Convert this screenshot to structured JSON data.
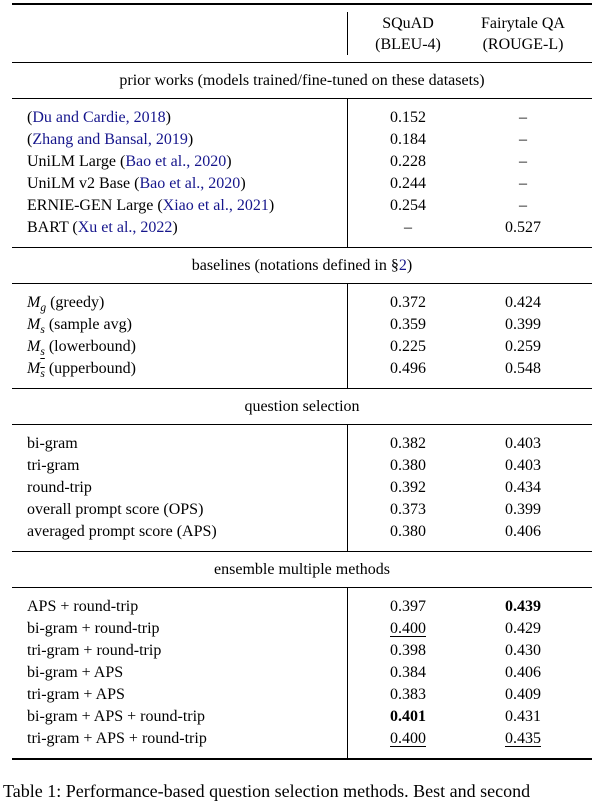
{
  "colors": {
    "text": "#000000",
    "citation_link": "#16168c",
    "rule": "#000000",
    "background": "#ffffff"
  },
  "header": {
    "columns": [
      {
        "line1": "SQuAD",
        "line2": "(BLEU-4)"
      },
      {
        "line1": "Fairytale QA",
        "line2": "(ROUGE-L)"
      }
    ]
  },
  "sections": [
    {
      "title": [
        {
          "t": "prior works (models trained/fine-tuned on these datasets)"
        }
      ],
      "rows": [
        {
          "label": [
            {
              "t": "("
            },
            {
              "t": "Du and Cardie, 2018",
              "s": "cite"
            },
            {
              "t": ")"
            }
          ],
          "v1": {
            "t": "0.152"
          },
          "v2": {
            "t": "–"
          }
        },
        {
          "label": [
            {
              "t": "("
            },
            {
              "t": "Zhang and Bansal, 2019",
              "s": "cite"
            },
            {
              "t": ")"
            }
          ],
          "v1": {
            "t": "0.184"
          },
          "v2": {
            "t": "–"
          }
        },
        {
          "label": [
            {
              "t": "UniLM Large ("
            },
            {
              "t": "Bao et al., 2020",
              "s": "cite"
            },
            {
              "t": ")"
            }
          ],
          "v1": {
            "t": "0.228"
          },
          "v2": {
            "t": "–"
          }
        },
        {
          "label": [
            {
              "t": "UniLM v2 Base ("
            },
            {
              "t": "Bao et al., 2020",
              "s": "cite"
            },
            {
              "t": ")"
            }
          ],
          "v1": {
            "t": "0.244"
          },
          "v2": {
            "t": "–"
          }
        },
        {
          "label": [
            {
              "t": "ERNIE-GEN Large ("
            },
            {
              "t": "Xiao et al., 2021",
              "s": "cite"
            },
            {
              "t": ")"
            }
          ],
          "v1": {
            "t": "0.254"
          },
          "v2": {
            "t": "–"
          }
        },
        {
          "label": [
            {
              "t": "BART ("
            },
            {
              "t": "Xu et al., 2022",
              "s": "cite"
            },
            {
              "t": ")"
            }
          ],
          "v1": {
            "t": "–"
          },
          "v2": {
            "t": "0.527"
          }
        }
      ]
    },
    {
      "title": [
        {
          "t": "baselines (notations defined in §"
        },
        {
          "t": "2",
          "s": "cite"
        },
        {
          "t": ")"
        }
      ],
      "rows": [
        {
          "label": [
            {
              "t": "M",
              "s": "math"
            },
            {
              "t": "g",
              "s": "sub"
            },
            {
              "t": " (greedy)"
            }
          ],
          "v1": {
            "t": "0.372"
          },
          "v2": {
            "t": "0.424"
          }
        },
        {
          "label": [
            {
              "t": "M",
              "s": "math"
            },
            {
              "t": "s",
              "s": "sub"
            },
            {
              "t": " (sample avg)"
            }
          ],
          "v1": {
            "t": "0.359"
          },
          "v2": {
            "t": "0.399"
          }
        },
        {
          "label": [
            {
              "t": "M",
              "s": "math"
            },
            {
              "t": "s",
              "s": "sub-under"
            },
            {
              "t": " (lowerbound)"
            }
          ],
          "v1": {
            "t": "0.225"
          },
          "v2": {
            "t": "0.259"
          }
        },
        {
          "label": [
            {
              "t": "M",
              "s": "math"
            },
            {
              "t": "s",
              "s": "sub-over"
            },
            {
              "t": " (upperbound)"
            }
          ],
          "v1": {
            "t": "0.496"
          },
          "v2": {
            "t": "0.548"
          }
        }
      ]
    },
    {
      "title": [
        {
          "t": "question selection"
        }
      ],
      "rows": [
        {
          "label": [
            {
              "t": "bi-gram"
            }
          ],
          "v1": {
            "t": "0.382"
          },
          "v2": {
            "t": "0.403"
          }
        },
        {
          "label": [
            {
              "t": "tri-gram"
            }
          ],
          "v1": {
            "t": "0.380"
          },
          "v2": {
            "t": "0.403"
          }
        },
        {
          "label": [
            {
              "t": "round-trip"
            }
          ],
          "v1": {
            "t": "0.392"
          },
          "v2": {
            "t": "0.434"
          }
        },
        {
          "label": [
            {
              "t": "overall prompt score (OPS)"
            }
          ],
          "v1": {
            "t": "0.373"
          },
          "v2": {
            "t": "0.399"
          }
        },
        {
          "label": [
            {
              "t": "averaged prompt score (APS)"
            }
          ],
          "v1": {
            "t": "0.380"
          },
          "v2": {
            "t": "0.406"
          }
        }
      ]
    },
    {
      "title": [
        {
          "t": "ensemble multiple methods"
        }
      ],
      "rows": [
        {
          "label": [
            {
              "t": "APS + round-trip"
            }
          ],
          "v1": {
            "t": "0.397"
          },
          "v2": {
            "t": "0.439",
            "s": "bold"
          }
        },
        {
          "label": [
            {
              "t": "bi-gram + round-trip"
            }
          ],
          "v1": {
            "t": "0.400",
            "s": "under"
          },
          "v2": {
            "t": "0.429"
          }
        },
        {
          "label": [
            {
              "t": "tri-gram + round-trip"
            }
          ],
          "v1": {
            "t": "0.398"
          },
          "v2": {
            "t": "0.430"
          }
        },
        {
          "label": [
            {
              "t": "bi-gram + APS"
            }
          ],
          "v1": {
            "t": "0.384"
          },
          "v2": {
            "t": "0.406"
          }
        },
        {
          "label": [
            {
              "t": "tri-gram + APS"
            }
          ],
          "v1": {
            "t": "0.383"
          },
          "v2": {
            "t": "0.409"
          }
        },
        {
          "label": [
            {
              "t": "bi-gram + APS + round-trip"
            }
          ],
          "v1": {
            "t": "0.401",
            "s": "bold"
          },
          "v2": {
            "t": "0.431"
          }
        },
        {
          "label": [
            {
              "t": "tri-gram + APS + round-trip"
            }
          ],
          "v1": {
            "t": "0.400",
            "s": "under"
          },
          "v2": {
            "t": "0.435",
            "s": "under"
          }
        }
      ]
    }
  ],
  "caption": {
    "text": "Table 1: Performance-based question selection methods. Best and second"
  }
}
